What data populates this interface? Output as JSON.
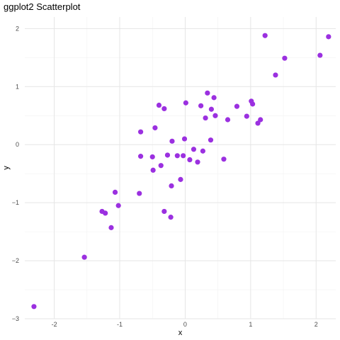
{
  "chart_data": {
    "type": "scatter",
    "title": "ggplot2 Scatterplot",
    "xlabel": "x",
    "ylabel": "y",
    "xlim": [
      -2.45,
      2.3
    ],
    "ylim": [
      -3,
      2.2
    ],
    "x_ticks": [
      -2,
      -1,
      0,
      1,
      2
    ],
    "y_ticks": [
      -3,
      -2,
      -1,
      0,
      1,
      2
    ],
    "grid": true,
    "legend": "none",
    "point_color": "#9B30E0",
    "points": [
      {
        "x": -2.31,
        "y": -2.79
      },
      {
        "x": -1.54,
        "y": -1.94
      },
      {
        "x": -1.27,
        "y": -1.15
      },
      {
        "x": -1.22,
        "y": -1.18
      },
      {
        "x": -1.13,
        "y": -1.43
      },
      {
        "x": -1.07,
        "y": -0.82
      },
      {
        "x": -1.02,
        "y": -1.05
      },
      {
        "x": -0.7,
        "y": -0.84
      },
      {
        "x": -0.68,
        "y": 0.22
      },
      {
        "x": -0.68,
        "y": -0.2
      },
      {
        "x": -0.5,
        "y": -0.21
      },
      {
        "x": -0.49,
        "y": -0.44
      },
      {
        "x": -0.46,
        "y": 0.29
      },
      {
        "x": -0.4,
        "y": 0.68
      },
      {
        "x": -0.37,
        "y": -0.36
      },
      {
        "x": -0.32,
        "y": 0.62
      },
      {
        "x": -0.32,
        "y": -1.15
      },
      {
        "x": -0.27,
        "y": -0.18
      },
      {
        "x": -0.22,
        "y": -1.25
      },
      {
        "x": -0.21,
        "y": -0.71
      },
      {
        "x": -0.2,
        "y": 0.06
      },
      {
        "x": -0.12,
        "y": -0.19
      },
      {
        "x": -0.07,
        "y": -0.6
      },
      {
        "x": -0.03,
        "y": -0.19
      },
      {
        "x": -0.01,
        "y": 0.1
      },
      {
        "x": 0.01,
        "y": 0.72
      },
      {
        "x": 0.07,
        "y": -0.26
      },
      {
        "x": 0.13,
        "y": -0.08
      },
      {
        "x": 0.19,
        "y": -0.3
      },
      {
        "x": 0.24,
        "y": 0.67
      },
      {
        "x": 0.27,
        "y": -0.11
      },
      {
        "x": 0.31,
        "y": 0.46
      },
      {
        "x": 0.34,
        "y": 0.89
      },
      {
        "x": 0.39,
        "y": 0.08
      },
      {
        "x": 0.4,
        "y": 0.61
      },
      {
        "x": 0.44,
        "y": 0.81
      },
      {
        "x": 0.46,
        "y": 0.5
      },
      {
        "x": 0.59,
        "y": -0.25
      },
      {
        "x": 0.65,
        "y": 0.43
      },
      {
        "x": 0.79,
        "y": 0.66
      },
      {
        "x": 0.94,
        "y": 0.49
      },
      {
        "x": 1.01,
        "y": 0.75
      },
      {
        "x": 1.03,
        "y": 0.7
      },
      {
        "x": 1.11,
        "y": 0.37
      },
      {
        "x": 1.15,
        "y": 0.43
      },
      {
        "x": 1.22,
        "y": 1.88
      },
      {
        "x": 1.38,
        "y": 1.2
      },
      {
        "x": 1.52,
        "y": 1.49
      },
      {
        "x": 2.06,
        "y": 1.54
      },
      {
        "x": 2.19,
        "y": 1.86
      }
    ]
  }
}
